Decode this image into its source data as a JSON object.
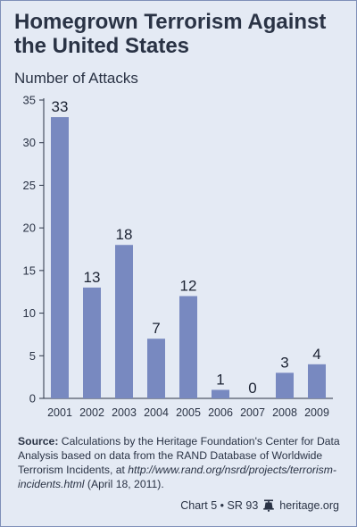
{
  "title": "Homegrown Terrorism Against the United States",
  "chart_data": {
    "type": "bar",
    "ylabel": "Number of Attacks",
    "categories": [
      "2001",
      "2002",
      "2003",
      "2004",
      "2005",
      "2006",
      "2007",
      "2008",
      "2009"
    ],
    "values": [
      33,
      13,
      18,
      7,
      12,
      1,
      0,
      3,
      4
    ],
    "data_labels": [
      "33",
      "13",
      "18",
      "7",
      "12",
      "1",
      "0",
      "3",
      "4"
    ],
    "y_ticks": [
      0,
      5,
      10,
      15,
      20,
      25,
      30,
      35
    ],
    "ylim": [
      0,
      35
    ],
    "grid": false,
    "bar_color": "#7889c0"
  },
  "source": {
    "label": "Source:",
    "text_before_url": " Calculations by the Heritage Foundation's Center for Data Analysis based on data from the RAND Database of Worldwide Terrorism Incidents, at ",
    "url": "http://www.rand.org/nsrd/projects/terrorism-incidents.html",
    "text_after_url": " (April 18, 2011)."
  },
  "footer": {
    "chart_id": "Chart 5 • SR 93",
    "site": "heritage.org"
  }
}
